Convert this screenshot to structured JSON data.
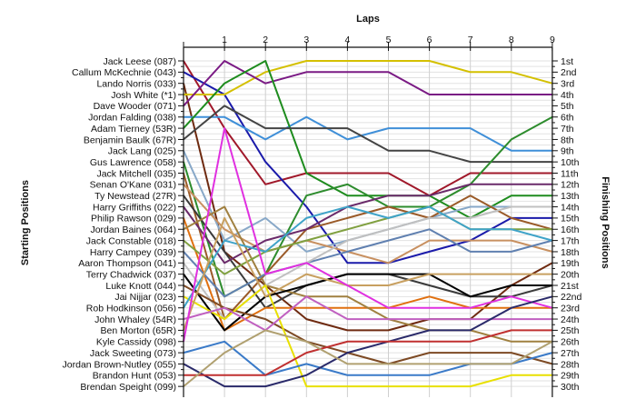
{
  "chart_data": {
    "type": "line",
    "title": "",
    "xlabel": "Laps",
    "ylabel_left": "Starting Positions",
    "ylabel_right": "Finishing Positions",
    "x": [
      0,
      1,
      2,
      3,
      4,
      5,
      6,
      7,
      8,
      9
    ],
    "x_tick_labels": [
      "1",
      "2",
      "3",
      "4",
      "5",
      "6",
      "7",
      "8",
      "9"
    ],
    "ylim": [
      1,
      30
    ],
    "y_reversed": true,
    "grid": true,
    "starting_labels": [
      "Jack Leese (087)",
      "Callum McKechnie (043)",
      "Lando Norris (033)",
      "Josh White (*1)",
      "Dave Wooder (071)",
      "Jordan Falding (038)",
      "Adam Tierney (53R)",
      "Benjamin Baulk (67R)",
      "Jack Lang (025)",
      "Gus Lawrence (058)",
      "Jack Mitchell (035)",
      "Senan O'Kane (031)",
      "Ty Newstead (27R)",
      "Harry Griffiths (022)",
      "Philip Rawson (029)",
      "Jordan Baines (064)",
      "Jack Constable (018)",
      "Harry Campey (039)",
      "Aaron Thompson (041)",
      "Terry Chadwick (037)",
      "Luke Knott (044)",
      "Jai Nijjar (023)",
      "Rob Hodkinson (056)",
      "John Whaley (54R)",
      "Ben Morton (65R)",
      "Kyle Cassidy (098)",
      "Jack Sweeting (073)",
      "Jordan Brown-Nutley (055)",
      "Brandon Hunt (053)",
      "Brendan Speight (099)"
    ],
    "finishing_labels": [
      "1st",
      "2nd",
      "3rd",
      "4th",
      "5th",
      "6th",
      "7th",
      "8th",
      "9th",
      "10th",
      "11th",
      "12th",
      "13th",
      "14th",
      "15th",
      "16th",
      "17th",
      "18th",
      "19th",
      "20th",
      "21st",
      "22nd",
      "23rd",
      "24th",
      "25th",
      "26th",
      "27th",
      "28th",
      "29th",
      "30th"
    ],
    "series": [
      {
        "color": "#a0182a",
        "values": [
          1,
          7,
          12,
          11,
          11,
          11,
          13,
          11,
          11,
          11
        ]
      },
      {
        "color": "#1a1aaa",
        "values": [
          2,
          4,
          10,
          14,
          19,
          19,
          18,
          17,
          15,
          15
        ]
      },
      {
        "color": "#6e2a10",
        "values": [
          3,
          18,
          21,
          24,
          25,
          25,
          24,
          24,
          21,
          19
        ]
      },
      {
        "color": "#d4c000",
        "values": [
          4,
          4,
          2,
          1,
          1,
          1,
          1,
          2,
          2,
          3
        ]
      },
      {
        "color": "#7a1a84",
        "values": [
          5,
          1,
          3,
          2,
          2,
          2,
          4,
          4,
          4,
          4
        ]
      },
      {
        "color": "#3f8fd8",
        "values": [
          6,
          6,
          8,
          6,
          8,
          7,
          7,
          7,
          9,
          9
        ]
      },
      {
        "color": "#1e8c1e",
        "values": [
          7,
          3,
          1,
          11,
          13,
          13,
          13,
          15,
          13,
          13
        ]
      },
      {
        "color": "#444444",
        "values": [
          8,
          5,
          7,
          7,
          7,
          9,
          9,
          10,
          10,
          10
        ]
      },
      {
        "color": "#88a8c8",
        "values": [
          9,
          17,
          15,
          18,
          17,
          16,
          15,
          14,
          14,
          14
        ]
      },
      {
        "color": "#2d8c2d",
        "values": [
          10,
          22,
          20,
          13,
          12,
          14,
          14,
          12,
          8,
          6
        ]
      },
      {
        "color": "#9a5a28",
        "values": [
          11,
          24,
          20,
          16,
          15,
          14,
          15,
          13,
          15,
          16
        ]
      },
      {
        "color": "#c89060",
        "values": [
          12,
          16,
          18,
          17,
          18,
          19,
          17,
          17,
          17,
          18
        ]
      },
      {
        "color": "#3a3a3a",
        "values": [
          13,
          18,
          23,
          21,
          20,
          20,
          21,
          22,
          22,
          21
        ]
      },
      {
        "color": "#6a2a6a",
        "values": [
          14,
          19,
          17,
          16,
          14,
          13,
          13,
          12,
          12,
          12
        ]
      },
      {
        "color": "#e07010",
        "values": [
          15,
          25,
          23,
          23,
          23,
          23,
          22,
          23,
          23,
          23
        ]
      },
      {
        "color": "#a08040",
        "values": [
          16,
          14,
          21,
          22,
          22,
          24,
          25,
          25,
          26,
          26
        ]
      },
      {
        "color": "#80a040",
        "values": [
          17,
          20,
          18,
          17,
          16,
          15,
          14,
          16,
          16,
          16
        ]
      },
      {
        "color": "#6080b0",
        "values": [
          18,
          22,
          20,
          19,
          18,
          17,
          16,
          18,
          18,
          17
        ]
      },
      {
        "color": "#c0c0c0",
        "values": [
          19,
          24,
          21,
          19,
          17,
          16,
          15,
          15,
          14,
          14
        ]
      },
      {
        "color": "#000000",
        "values": [
          20,
          25,
          22,
          21,
          20,
          20,
          20,
          22,
          21,
          21
        ]
      },
      {
        "color": "#7d4a24",
        "values": [
          21,
          23,
          24,
          26,
          27,
          28,
          27,
          27,
          27,
          28
        ]
      },
      {
        "color": "#e8e000",
        "values": [
          22,
          24,
          21,
          30,
          30,
          30,
          30,
          30,
          29,
          29
        ]
      },
      {
        "color": "#3fa3c8",
        "values": [
          23,
          17,
          18,
          15,
          14,
          15,
          14,
          16,
          16,
          17
        ]
      },
      {
        "color": "#c060c0",
        "values": [
          24,
          23,
          25,
          22,
          24,
          24,
          24,
          24,
          24,
          24
        ]
      },
      {
        "color": "#c8a060",
        "values": [
          25,
          15,
          22,
          20,
          21,
          21,
          20,
          20,
          20,
          20
        ]
      },
      {
        "color": "#e030e0",
        "values": [
          26,
          7,
          20,
          19,
          21,
          23,
          23,
          23,
          22,
          23
        ]
      },
      {
        "color": "#3a7ac8",
        "values": [
          27,
          26,
          29,
          28,
          29,
          29,
          29,
          28,
          28,
          27
        ]
      },
      {
        "color": "#2a2a6a",
        "values": [
          28,
          30,
          30,
          29,
          27,
          26,
          25,
          25,
          23,
          22
        ]
      },
      {
        "color": "#c03030",
        "values": [
          29,
          29,
          29,
          27,
          26,
          26,
          26,
          26,
          25,
          25
        ]
      },
      {
        "color": "#b0a070",
        "values": [
          30,
          27,
          25,
          26,
          28,
          28,
          28,
          28,
          28,
          26
        ]
      }
    ]
  }
}
